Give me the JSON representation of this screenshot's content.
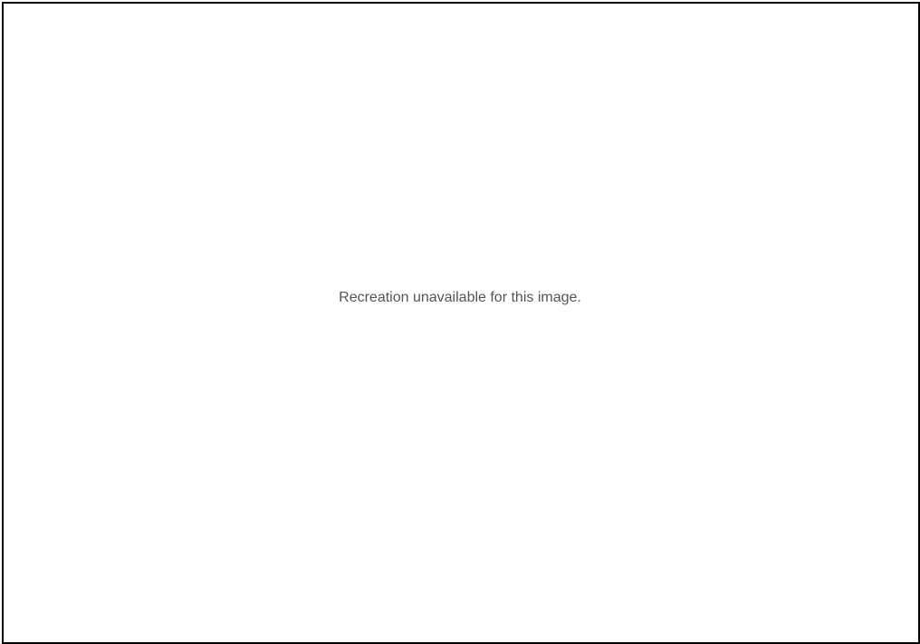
{
  "note": "Recreation unavailable for this image."
}
